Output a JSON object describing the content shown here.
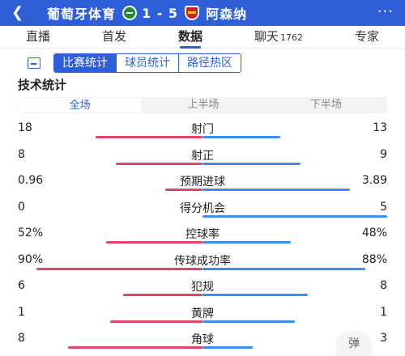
{
  "header": {
    "back_icon": "chevron-left-icon",
    "home_team": "葡萄牙体育",
    "score": "1 - 5",
    "away_team": "阿森纳",
    "more_label": "···",
    "colors": {
      "bar": "#2f5fd8"
    }
  },
  "tabs": [
    {
      "label": "直播"
    },
    {
      "label": "首发"
    },
    {
      "label": "数据",
      "active": true
    },
    {
      "label": "聊天",
      "count": "1762"
    },
    {
      "label": "专家"
    }
  ],
  "subtabs": [
    {
      "label": "比赛统计",
      "active": true
    },
    {
      "label": "球员统计"
    },
    {
      "label": "路径热区"
    }
  ],
  "section_title": "技术统计",
  "periods": [
    {
      "label": "全场",
      "active": true
    },
    {
      "label": "上半场"
    },
    {
      "label": "下半场"
    }
  ],
  "stats": [
    {
      "label": "射门",
      "home": "18",
      "away": "13",
      "home_share": 0.58,
      "away_share": 0.42
    },
    {
      "label": "射正",
      "home": "8",
      "away": "9",
      "home_share": 0.47,
      "away_share": 0.53
    },
    {
      "label": "预期进球",
      "home": "0.96",
      "away": "3.89",
      "home_share": 0.2,
      "away_share": 0.8
    },
    {
      "label": "得分机会",
      "home": "0",
      "away": "5",
      "home_share": 0.0,
      "away_share": 1.0
    },
    {
      "label": "控球率",
      "home": "52%",
      "away": "48%",
      "home_share": 0.52,
      "away_share": 0.48
    },
    {
      "label": "传球成功率",
      "home": "90%",
      "away": "88%",
      "home_share": 0.9,
      "away_share": 0.88
    },
    {
      "label": "犯规",
      "home": "6",
      "away": "8",
      "home_share": 0.43,
      "away_share": 0.57
    },
    {
      "label": "黄牌",
      "home": "1",
      "away": "1",
      "home_share": 0.5,
      "away_share": 0.5
    },
    {
      "label": "角球",
      "home": "8",
      "away": "3",
      "home_share": 0.73,
      "away_share": 0.27
    }
  ],
  "float_button": "弹",
  "colors": {
    "home_bar": "#e0436b",
    "away_bar": "#3a8ef0",
    "accent": "#2f5fd8"
  }
}
